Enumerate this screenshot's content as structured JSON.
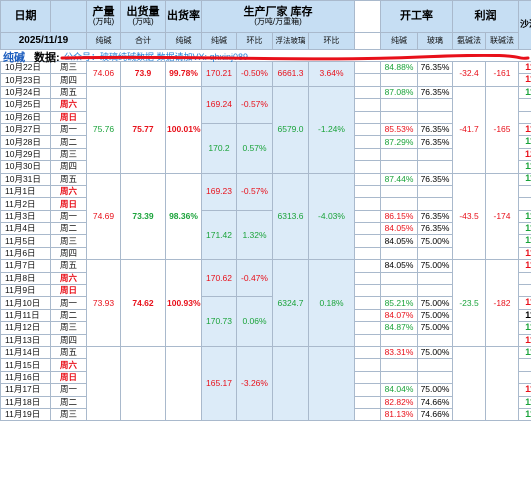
{
  "header": {
    "date_col": "日期",
    "output": {
      "title": "产量",
      "unit": "(万吨)"
    },
    "shipment": {
      "title": "出货量",
      "unit": "(万吨)"
    },
    "ship_rate": "出货率",
    "inventory": {
      "title": "生产厂家  库存",
      "unit": "(万吨/万重箱)"
    },
    "operating": "开工率",
    "profit": "利润",
    "last": "沙河现货"
  },
  "subheader": {
    "date": "2025/11/19",
    "output": "纯碱",
    "shipment": "合计",
    "ship_rate": "纯碱",
    "inv_soda": "纯碱",
    "inv_mom1": "环比",
    "inv_glass": "浮法玻璃",
    "inv_mom2": "环比",
    "op_soda": "纯碱",
    "op_glass": "玻璃",
    "profit_ammonia": "氨碱法",
    "profit_joint": "联碱法"
  },
  "note": {
    "title": "纯碱",
    "label": "数据:",
    "overlay": "公众号：玻璃纯碱数据    数据请加VX: qhxinj089"
  },
  "rows": [
    {
      "date": "10月22日",
      "wd": "周三",
      "wd_red": false,
      "op_soda": "84.88%",
      "op_soda_c": "grn",
      "op_glass": "76.35%",
      "last": "1173",
      "last_c": "red"
    },
    {
      "date": "10月23日",
      "wd": "周四",
      "wd_red": false,
      "op_soda": "",
      "op_soda_c": "grn",
      "op_glass": "",
      "last": "1185",
      "last_c": "red"
    },
    {
      "date": "10月24日",
      "wd": "周五",
      "wd_red": false,
      "op_soda": "87.08%",
      "op_soda_c": "grn",
      "op_glass": "76.35%",
      "last": "1174",
      "last_c": "grn"
    },
    {
      "date": "10月25日",
      "wd": "周六",
      "wd_red": true,
      "op_soda": "",
      "op_soda_c": "grn",
      "op_glass": "",
      "last": "",
      "last_c": "blk"
    },
    {
      "date": "10月26日",
      "wd": "周日",
      "wd_red": true,
      "op_soda": "",
      "op_soda_c": "grn",
      "op_glass": "",
      "last": "",
      "last_c": "blk"
    },
    {
      "date": "10月27日",
      "wd": "周一",
      "wd_red": false,
      "op_soda": "85.53%",
      "op_soda_c": "red",
      "op_glass": "76.35%",
      "last": "1191",
      "last_c": "red"
    },
    {
      "date": "10月28日",
      "wd": "周二",
      "wd_red": false,
      "op_soda": "87.29%",
      "op_soda_c": "grn",
      "op_glass": "76.35%",
      "last": "1189",
      "last_c": "grn"
    },
    {
      "date": "10月29日",
      "wd": "周三",
      "wd_red": false,
      "op_soda": "",
      "op_soda_c": "grn",
      "op_glass": "",
      "last": "1209",
      "last_c": "red"
    },
    {
      "date": "10月30日",
      "wd": "周四",
      "wd_red": false,
      "op_soda": "",
      "op_soda_c": "grn",
      "op_glass": "",
      "last": "1185",
      "last_c": "grn"
    },
    {
      "date": "10月31日",
      "wd": "周五",
      "wd_red": false,
      "op_soda": "87.44%",
      "op_soda_c": "grn",
      "op_glass": "76.35%",
      "last": "1175",
      "last_c": "grn"
    },
    {
      "date": "11月1日",
      "wd": "周六",
      "wd_red": true,
      "op_soda": "",
      "op_soda_c": "grn",
      "op_glass": "",
      "last": "",
      "last_c": "blk"
    },
    {
      "date": "11月2日",
      "wd": "周日",
      "wd_red": true,
      "op_soda": "",
      "op_soda_c": "grn",
      "op_glass": "",
      "last": "",
      "last_c": "blk"
    },
    {
      "date": "11月3日",
      "wd": "周一",
      "wd_red": false,
      "op_soda": "86.15%",
      "op_soda_c": "red",
      "op_glass": "76.35%",
      "last": "1162",
      "last_c": "grn"
    },
    {
      "date": "11月4日",
      "wd": "周二",
      "wd_red": false,
      "op_soda": "84.05%",
      "op_soda_c": "red",
      "op_glass": "76.35%",
      "last": "1149",
      "last_c": "grn"
    },
    {
      "date": "11月5日",
      "wd": "周三",
      "wd_red": false,
      "op_soda": "84.05%",
      "op_soda_c": "blk",
      "op_glass": "75.00%",
      "last": "1145",
      "last_c": "grn"
    },
    {
      "date": "11月6日",
      "wd": "周四",
      "wd_red": false,
      "op_soda": "",
      "op_soda_c": "grn",
      "op_glass": "",
      "last": "1157",
      "last_c": "red"
    },
    {
      "date": "11月7日",
      "wd": "周五",
      "wd_red": false,
      "op_soda": "84.05%",
      "op_soda_c": "blk",
      "op_glass": "75.00%",
      "last": "1160",
      "last_c": "red"
    },
    {
      "date": "11月8日",
      "wd": "周六",
      "wd_red": true,
      "op_soda": "",
      "op_soda_c": "grn",
      "op_glass": "",
      "last": "",
      "last_c": "blk"
    },
    {
      "date": "11月9日",
      "wd": "周日",
      "wd_red": true,
      "op_soda": "",
      "op_soda_c": "grn",
      "op_glass": "",
      "last": "",
      "last_c": "blk"
    },
    {
      "date": "11月10日",
      "wd": "周一",
      "wd_red": false,
      "op_soda": "85.21%",
      "op_soda_c": "grn",
      "op_glass": "75.00%",
      "last": "1176",
      "last_c": "red"
    },
    {
      "date": "11月11日",
      "wd": "周二",
      "wd_red": false,
      "op_soda": "84.07%",
      "op_soda_c": "red",
      "op_glass": "75.00%",
      "last": "1176",
      "last_c": "blk"
    },
    {
      "date": "11月12日",
      "wd": "周三",
      "wd_red": false,
      "op_soda": "84.87%",
      "op_soda_c": "grn",
      "op_glass": "75.00%",
      "last": "1164",
      "last_c": "grn"
    },
    {
      "date": "11月13日",
      "wd": "周四",
      "wd_red": false,
      "op_soda": "",
      "op_soda_c": "grn",
      "op_glass": "",
      "last": "1194",
      "last_c": "red"
    },
    {
      "date": "11月14日",
      "wd": "周五",
      "wd_red": false,
      "op_soda": "83.31%",
      "op_soda_c": "red",
      "op_glass": "75.00%",
      "last": "1176",
      "last_c": "grn"
    },
    {
      "date": "11月15日",
      "wd": "周六",
      "wd_red": true,
      "op_soda": "",
      "op_soda_c": "grn",
      "op_glass": "",
      "last": "",
      "last_c": "blk"
    },
    {
      "date": "11月16日",
      "wd": "周日",
      "wd_red": true,
      "op_soda": "",
      "op_soda_c": "grn",
      "op_glass": "",
      "last": "",
      "last_c": "blk"
    },
    {
      "date": "11月17日",
      "wd": "周一",
      "wd_red": false,
      "op_soda": "84.04%",
      "op_soda_c": "grn",
      "op_glass": "75.00%",
      "last": "1181",
      "last_c": "red"
    },
    {
      "date": "11月18日",
      "wd": "周二",
      "wd_red": false,
      "op_soda": "82.82%",
      "op_soda_c": "red",
      "op_glass": "74.66%",
      "last": "1159",
      "last_c": "grn"
    },
    {
      "date": "11月19日",
      "wd": "周三",
      "wd_red": false,
      "op_soda": "81.13%",
      "op_soda_c": "red",
      "op_glass": "74.66%",
      "last": "1132",
      "last_c": "grn"
    }
  ],
  "weeks": [
    {
      "output": "74.06",
      "output_c": "red",
      "ship": "73.9",
      "ship_c": "red",
      "rate": "99.78%",
      "rate_c": "red",
      "inv": "170.21",
      "inv_c": "red",
      "mom": "-0.50%",
      "mom_c": "red",
      "glass": "6661.3",
      "glass_c": "red",
      "gmom": "3.64%",
      "gmom_c": "red",
      "p_ammonia": "-32.4",
      "p_amm_c": "red",
      "p_joint": "-161",
      "p_joint_c": "red"
    },
    {
      "output": "75.76",
      "output_c": "grn",
      "ship": "75.77",
      "ship_c": "red",
      "rate": "100.01%",
      "rate_c": "red",
      "inv1": "169.24",
      "inv1_c": "red",
      "mom1": "-0.57%",
      "mom1_c": "red",
      "inv2": "170.2",
      "inv2_c": "grn",
      "mom2": "0.57%",
      "mom2_c": "grn",
      "glass": "6579.0",
      "glass_c": "grn",
      "gmom": "-1.24%",
      "gmom_c": "grn",
      "p_ammonia": "-41.7",
      "p_amm_c": "red",
      "p_joint": "-165",
      "p_joint_c": "red"
    },
    {
      "output": "74.69",
      "output_c": "red",
      "ship": "73.39",
      "ship_c": "grn",
      "rate": "98.36%",
      "rate_c": "grn",
      "inv1": "169.23",
      "inv1_c": "red",
      "mom1": "-0.57%",
      "mom1_c": "red",
      "inv2": "171.42",
      "inv2_c": "grn",
      "mom2": "1.32%",
      "mom2_c": "grn",
      "glass": "6313.6",
      "glass_c": "grn",
      "gmom": "-4.03%",
      "gmom_c": "grn",
      "p_ammonia": "-43.5",
      "p_amm_c": "red",
      "p_joint": "-174",
      "p_joint_c": "red"
    },
    {
      "output": "73.93",
      "output_c": "red",
      "ship": "74.62",
      "ship_c": "red",
      "rate": "100.93%",
      "rate_c": "red",
      "inv1": "170.62",
      "inv1_c": "red",
      "mom1": "-0.47%",
      "mom1_c": "red",
      "inv2": "170.73",
      "inv2_c": "grn",
      "mom2": "0.06%",
      "mom2_c": "grn",
      "glass": "6324.7",
      "glass_c": "grn",
      "gmom": "0.18%",
      "gmom_c": "grn",
      "p_ammonia": "-23.5",
      "p_amm_c": "grn",
      "p_joint": "-182",
      "p_joint_c": "red"
    },
    {
      "inv1": "165.17",
      "inv1_c": "red",
      "mom1": "-3.26%",
      "mom1_c": "red"
    }
  ]
}
